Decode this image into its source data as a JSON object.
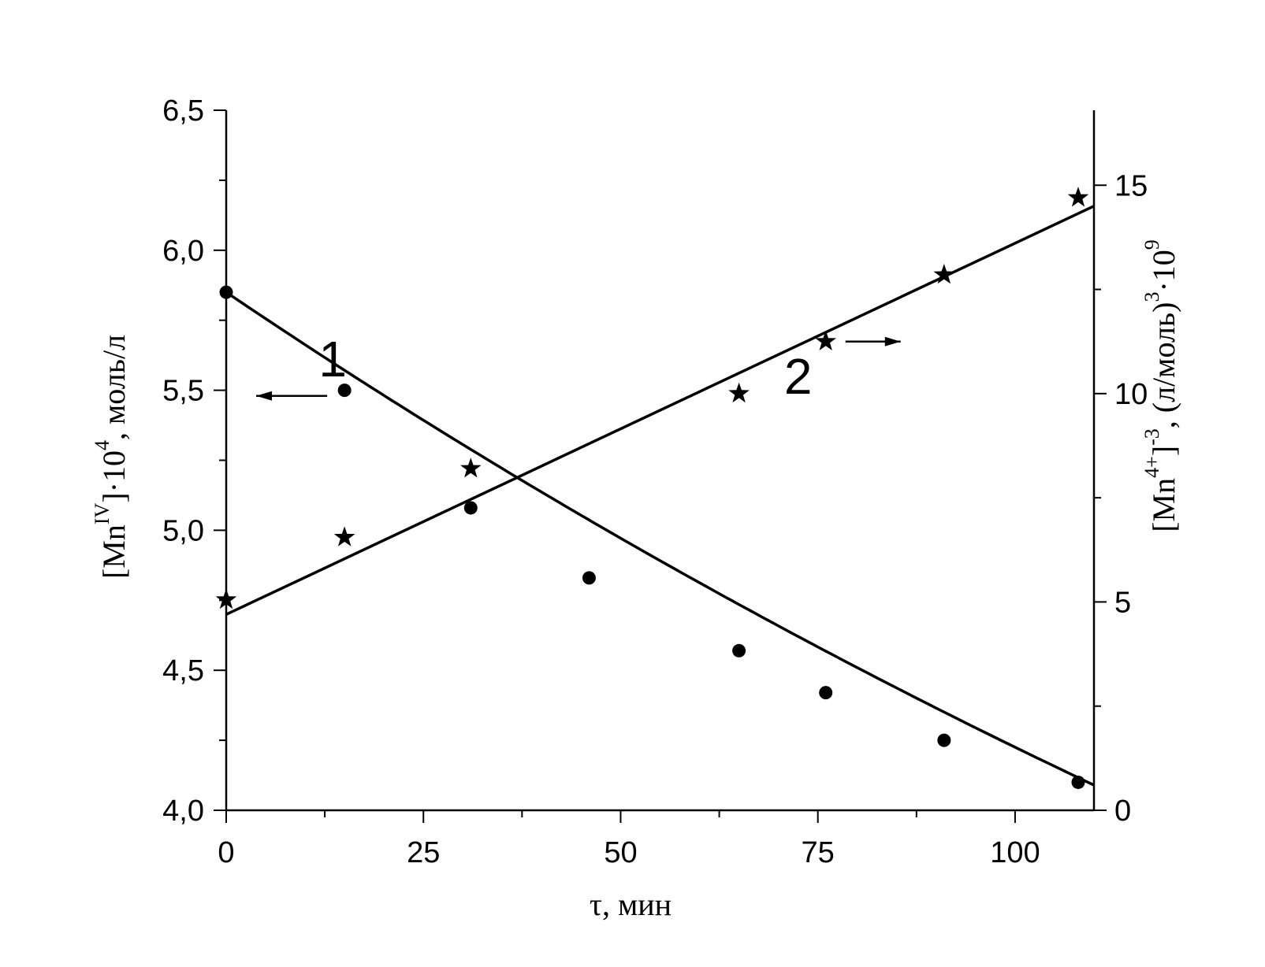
{
  "chart_data": {
    "type": "scatter",
    "xlabel": "τ, мин",
    "ylabel_left": {
      "prefix": "[Mn",
      "sup1": "IV",
      "mid": "]",
      "dot": "·",
      "base": "10",
      "sup2": "4",
      "suffix": ", моль/л"
    },
    "ylabel_right": {
      "prefix": "[Mn",
      "sup1": "4+",
      "mid": "]",
      "sup2": "-3",
      "mid2": ", (л/моль)",
      "sup3": "3",
      "dot": "·",
      "base": "10",
      "sup4": "9"
    },
    "xlim": [
      0,
      110
    ],
    "ylim_left": [
      4.0,
      6.5
    ],
    "ylim_right": [
      0,
      16.8
    ],
    "x_ticks": [
      {
        "value": 0,
        "label": "0"
      },
      {
        "value": 25,
        "label": "25"
      },
      {
        "value": 50,
        "label": "50"
      },
      {
        "value": 75,
        "label": "75"
      },
      {
        "value": 100,
        "label": "100"
      }
    ],
    "y_left_ticks": [
      {
        "value": 4.0,
        "label": "4,0"
      },
      {
        "value": 4.5,
        "label": "4,5"
      },
      {
        "value": 5.0,
        "label": "5,0"
      },
      {
        "value": 5.5,
        "label": "5,5"
      },
      {
        "value": 6.0,
        "label": "6,0"
      },
      {
        "value": 6.5,
        "label": "6,5"
      }
    ],
    "y_right_ticks": [
      {
        "value": 0,
        "label": "0"
      },
      {
        "value": 5,
        "label": "5"
      },
      {
        "value": 10,
        "label": "10"
      },
      {
        "value": 15,
        "label": "15"
      }
    ],
    "series": [
      {
        "label": "1",
        "axis": "left",
        "marker": "circle",
        "x": [
          0,
          15,
          31,
          46,
          65,
          76,
          91,
          108
        ],
        "y": [
          5.85,
          5.5,
          5.08,
          4.83,
          4.57,
          4.42,
          4.25,
          4.1
        ],
        "fit": {
          "model": "exponential",
          "x": [
            0,
            110
          ],
          "y_start": 5.85,
          "y_end": 4.09
        }
      },
      {
        "label": "2",
        "axis": "right",
        "marker": "star",
        "x": [
          0,
          15,
          31,
          65,
          76,
          91,
          108
        ],
        "y": [
          5.05,
          6.55,
          8.2,
          10.0,
          11.25,
          12.85,
          14.7
        ],
        "fit": {
          "model": "linear",
          "x": [
            0,
            110
          ],
          "y": [
            4.7,
            14.5
          ]
        }
      }
    ],
    "annotations": [
      {
        "text": "1",
        "arrow": "left",
        "series": 0
      },
      {
        "text": "2",
        "arrow": "right",
        "series": 1
      }
    ],
    "grid": false,
    "legend": "none"
  }
}
